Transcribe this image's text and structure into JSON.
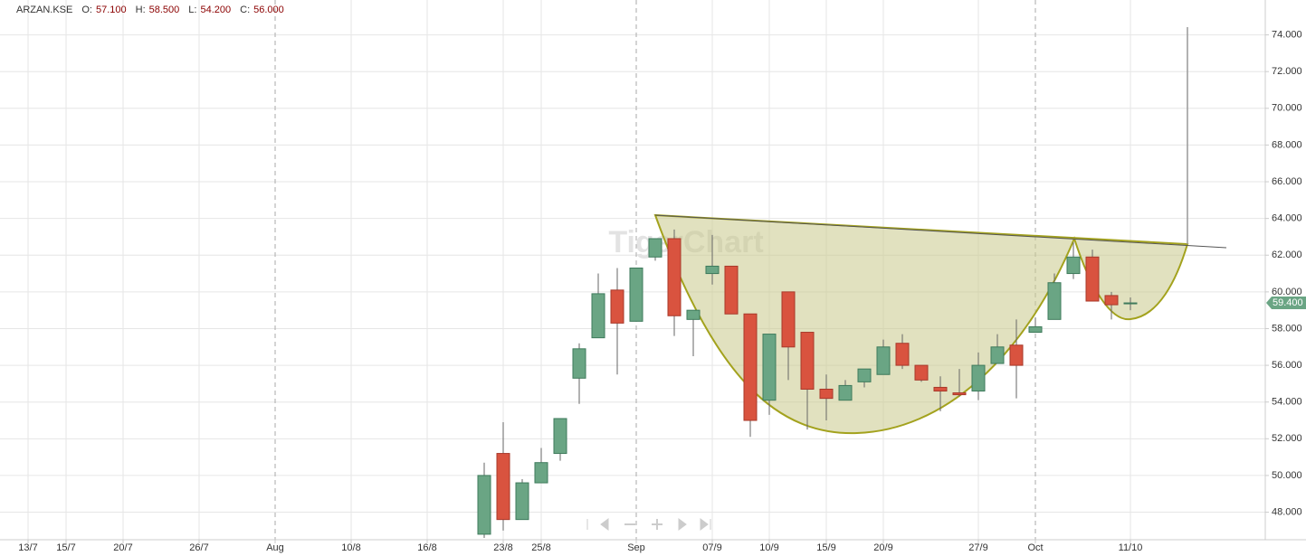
{
  "header": {
    "symbol": "ARZAN.KSE",
    "fields": [
      {
        "label": "O:",
        "value": "57.100"
      },
      {
        "label": "H:",
        "value": "58.500"
      },
      {
        "label": "L:",
        "value": "54.200"
      },
      {
        "label": "C:",
        "value": "56.000"
      }
    ]
  },
  "watermark": "TigerChart",
  "chart_data": {
    "type": "candlestick",
    "categories": [
      "13/7",
      null,
      "15/7",
      null,
      null,
      "20/7",
      null,
      null,
      null,
      "26/7",
      null,
      null,
      null,
      "Aug",
      null,
      null,
      null,
      "10/8",
      null,
      null,
      null,
      "16/8",
      null,
      null,
      null,
      "23/8",
      null,
      "25/8",
      null,
      null,
      null,
      null,
      "Sep",
      null,
      null,
      null,
      "07/9",
      null,
      null,
      "10/9",
      null,
      null,
      "15/9",
      null,
      null,
      "20/9",
      null,
      null,
      null,
      null,
      "27/9",
      null,
      null,
      "Oct",
      null,
      null,
      null,
      null,
      "11/10",
      null,
      null,
      null,
      null,
      null,
      null,
      null
    ],
    "open": [
      null,
      null,
      null,
      null,
      null,
      null,
      null,
      null,
      null,
      null,
      null,
      null,
      null,
      null,
      null,
      null,
      null,
      null,
      null,
      null,
      null,
      null,
      null,
      null,
      46.8,
      51.2,
      47.6,
      49.6,
      51.2,
      55.3,
      57.5,
      60.1,
      58.4,
      61.9,
      62.9,
      58.5,
      61.0,
      61.4,
      58.8,
      54.1,
      60.0,
      57.8,
      54.7,
      54.1,
      55.1,
      55.5,
      57.2,
      56.0,
      54.8,
      54.5,
      54.6,
      56.1,
      57.1,
      57.8,
      58.5,
      61.0,
      61.9,
      59.8,
      59.4,
      null,
      null,
      null,
      null,
      null,
      null,
      null
    ],
    "high": [
      null,
      null,
      null,
      null,
      null,
      null,
      null,
      null,
      null,
      null,
      null,
      null,
      null,
      null,
      null,
      null,
      null,
      null,
      null,
      null,
      null,
      null,
      null,
      null,
      50.7,
      52.9,
      49.8,
      51.5,
      53.1,
      57.2,
      61.0,
      61.3,
      61.3,
      62.9,
      63.4,
      59.0,
      63.1,
      61.4,
      58.8,
      57.7,
      60.0,
      57.8,
      55.5,
      55.2,
      55.8,
      57.4,
      57.7,
      56.0,
      55.4,
      55.8,
      56.7,
      57.7,
      58.5,
      58.6,
      61.0,
      62.7,
      62.3,
      60.0,
      59.7,
      null,
      null,
      null,
      null,
      null,
      null,
      null
    ],
    "low": [
      null,
      null,
      null,
      null,
      null,
      null,
      null,
      null,
      null,
      null,
      null,
      null,
      null,
      null,
      null,
      null,
      null,
      null,
      null,
      null,
      null,
      null,
      null,
      null,
      46.6,
      47.0,
      47.6,
      49.6,
      50.8,
      53.9,
      57.5,
      55.5,
      58.4,
      61.7,
      57.6,
      56.5,
      60.4,
      58.8,
      52.1,
      53.3,
      55.2,
      52.5,
      53.0,
      54.1,
      54.8,
      55.5,
      55.8,
      55.1,
      53.5,
      54.3,
      54.1,
      56.1,
      54.2,
      57.8,
      58.5,
      60.7,
      59.5,
      58.5,
      59.0,
      null,
      null,
      null,
      null,
      null,
      null,
      null
    ],
    "close": [
      null,
      null,
      null,
      null,
      null,
      null,
      null,
      null,
      null,
      null,
      null,
      null,
      null,
      null,
      null,
      null,
      null,
      null,
      null,
      null,
      null,
      null,
      null,
      null,
      50.0,
      47.6,
      49.6,
      50.7,
      53.1,
      56.9,
      59.9,
      58.3,
      61.3,
      62.9,
      58.7,
      59.0,
      61.4,
      58.8,
      53.0,
      57.7,
      57.0,
      54.7,
      54.2,
      54.9,
      55.8,
      57.0,
      56.0,
      55.2,
      54.6,
      54.4,
      56.0,
      57.0,
      56.0,
      58.1,
      60.5,
      61.9,
      59.5,
      59.3,
      59.4,
      null,
      null,
      null,
      null,
      null,
      null,
      null
    ],
    "up_color": "#6aa584",
    "down_color": "#d9533f",
    "ylim": [
      46.5,
      75.9
    ],
    "yticks": [
      {
        "value": 48,
        "label": "48.000"
      },
      {
        "value": 50,
        "label": "50.000"
      },
      {
        "value": 52,
        "label": "52.000"
      },
      {
        "value": 54,
        "label": "54.000"
      },
      {
        "value": 56,
        "label": "56.000"
      },
      {
        "value": 58,
        "label": "58.000"
      },
      {
        "value": 60,
        "label": "60.000"
      },
      {
        "value": 62,
        "label": "62.000"
      },
      {
        "value": 64,
        "label": "64.000"
      },
      {
        "value": 66,
        "label": "66.000"
      },
      {
        "value": 68,
        "label": "68.000"
      },
      {
        "value": 70,
        "label": "70.000"
      },
      {
        "value": 72,
        "label": "72.000"
      },
      {
        "value": 74,
        "label": "74.000"
      }
    ],
    "last_price": {
      "value": 59.4,
      "label": "59.400"
    },
    "grid": true
  }
}
